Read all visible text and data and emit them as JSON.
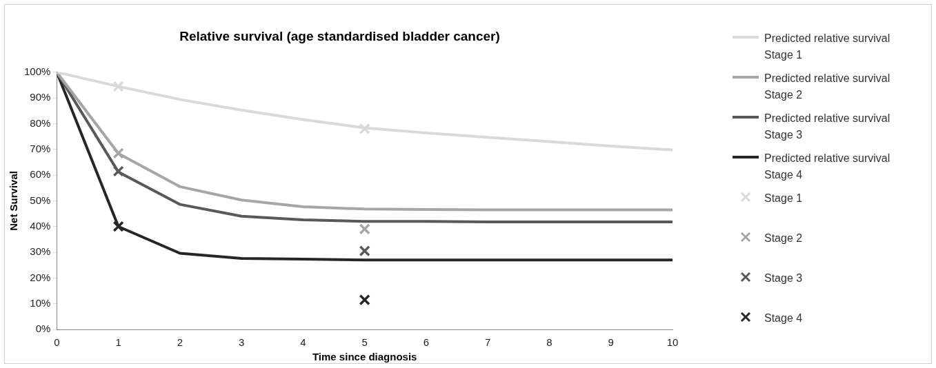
{
  "chart_data": {
    "type": "line",
    "title": "Relative survival (age standardised bladder cancer)",
    "xlabel": "Time since diagnosis",
    "ylabel": "Net Survival",
    "x": [
      0,
      1,
      2,
      3,
      4,
      5,
      6,
      7,
      8,
      9,
      10
    ],
    "series": [
      {
        "name": "Predicted relative survival Stage 1",
        "color": "#d9d9d9",
        "values": [
          100,
          94.5,
          89.4,
          85.3,
          81.6,
          78.4,
          76.4,
          74.7,
          73,
          71.3,
          69.8
        ]
      },
      {
        "name": "Predicted relative survival Stage 2",
        "color": "#a6a6a6",
        "values": [
          100,
          68.4,
          55.5,
          50.3,
          47.7,
          46.8,
          46.6,
          46.5,
          46.5,
          46.5,
          46.5
        ]
      },
      {
        "name": "Predicted relative survival Stage 3",
        "color": "#595959",
        "values": [
          100,
          61.2,
          48.6,
          44,
          42.6,
          42,
          42,
          41.8,
          41.8,
          41.8,
          41.8
        ]
      },
      {
        "name": "Predicted relative survival Stage 4",
        "color": "#262626",
        "values": [
          100,
          40,
          29.6,
          27.6,
          27.3,
          27,
          27,
          27,
          27,
          27,
          27
        ]
      },
      {
        "name": "Stage 1",
        "type": "scatter",
        "marker": "cross",
        "color": "#d9d9d9",
        "values": [
          null,
          94.5,
          null,
          null,
          null,
          78,
          null,
          null,
          null,
          null,
          null
        ]
      },
      {
        "name": "Stage 2",
        "type": "scatter",
        "marker": "cross",
        "color": "#a6a6a6",
        "values": [
          null,
          68.5,
          null,
          null,
          null,
          39,
          null,
          null,
          null,
          null,
          null
        ]
      },
      {
        "name": "Stage 3",
        "type": "scatter",
        "marker": "cross",
        "color": "#595959",
        "values": [
          null,
          61.5,
          null,
          null,
          null,
          30.5,
          null,
          null,
          null,
          null,
          null
        ]
      },
      {
        "name": "Stage 4",
        "type": "scatter",
        "marker": "cross",
        "color": "#262626",
        "values": [
          null,
          40,
          null,
          null,
          null,
          11.5,
          null,
          null,
          null,
          null,
          null
        ]
      }
    ],
    "xlim": [
      0,
      10
    ],
    "xticks": [
      0,
      1,
      2,
      3,
      4,
      5,
      6,
      7,
      8,
      9,
      10
    ],
    "ylim": [
      0,
      100
    ],
    "yticks": [
      {
        "value": 0,
        "label": "0%"
      },
      {
        "value": 10,
        "label": "10%"
      },
      {
        "value": 20,
        "label": "20%"
      },
      {
        "value": 30,
        "label": "30%"
      },
      {
        "value": 40,
        "label": "40%"
      },
      {
        "value": 50,
        "label": "50%"
      },
      {
        "value": 60,
        "label": "60%"
      },
      {
        "value": 70,
        "label": "70%"
      },
      {
        "value": 80,
        "label": "80%"
      },
      {
        "value": 90,
        "label": "90%"
      },
      {
        "value": 100,
        "label": "100%"
      }
    ],
    "legend": "right",
    "marker": "none",
    "line_style": "solid"
  }
}
